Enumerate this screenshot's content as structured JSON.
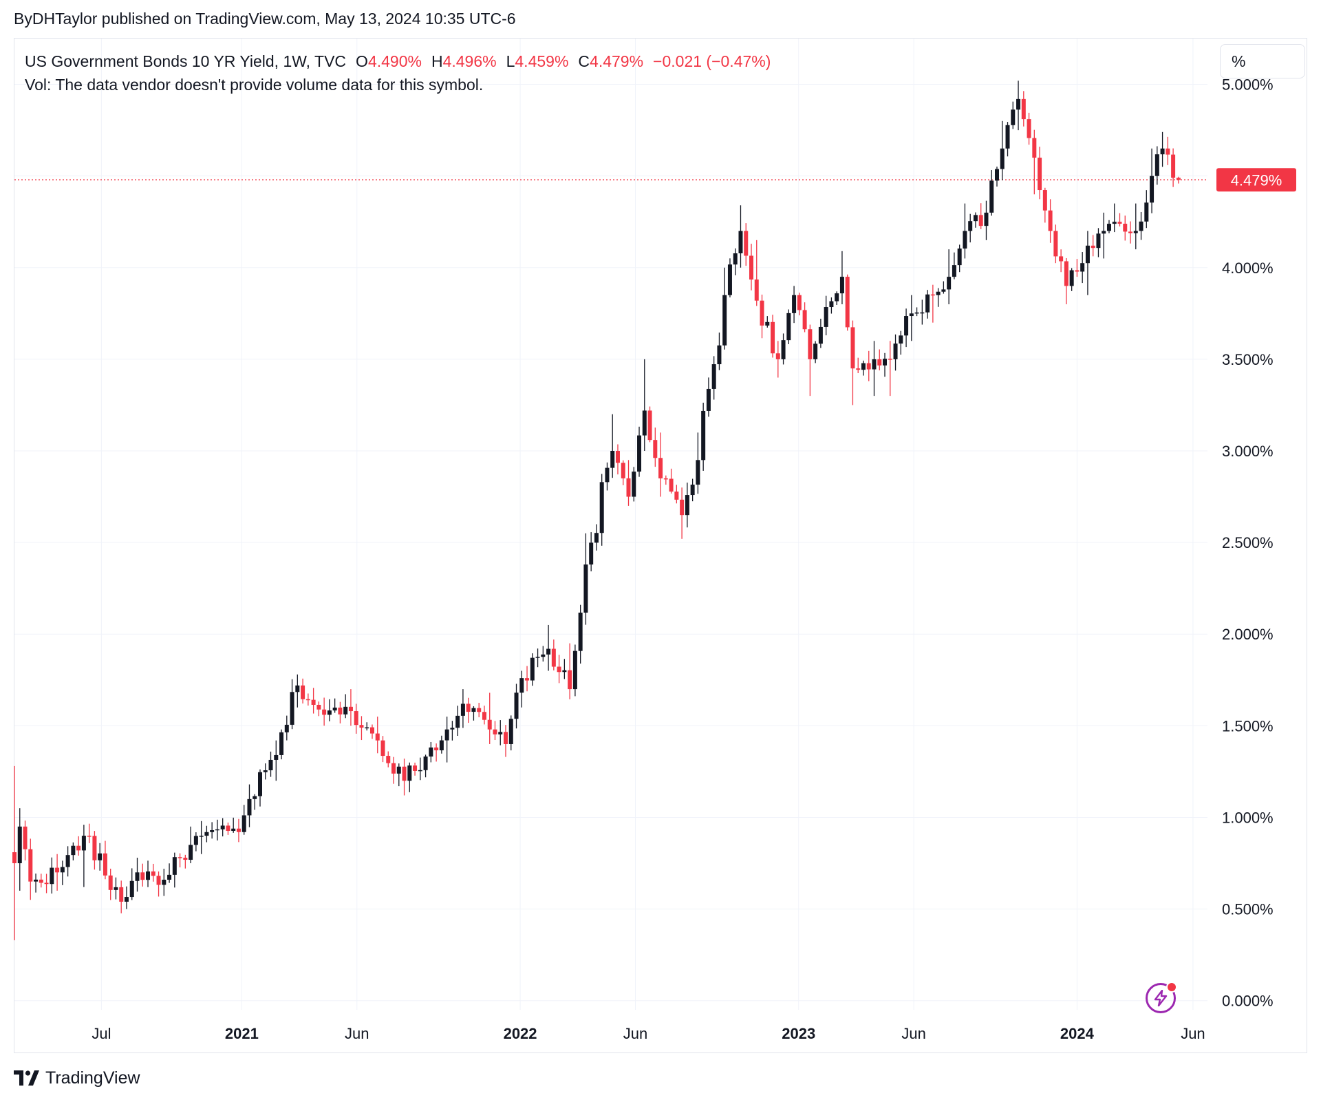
{
  "header": {
    "publish_line": "ByDHTaylor published on TradingView.com, May 13, 2024 10:35 UTC-6"
  },
  "legend": {
    "symbol": "US Government Bonds 10 YR Yield, 1W, TVC",
    "open_label": "O",
    "open_value": "4.490%",
    "high_label": "H",
    "high_value": "4.496%",
    "low_label": "L",
    "low_value": "4.459%",
    "close_label": "C",
    "close_value": "4.479%",
    "change": "−0.021 (−0.47%)",
    "vol_note": "Vol: The data vendor doesn't provide volume data for this symbol."
  },
  "toolbar": {
    "unit_label": "%"
  },
  "price_label": "4.479%",
  "brand": {
    "name": "TradingView"
  },
  "colors": {
    "up": "#131722",
    "down": "#f23645",
    "grid": "#f0f3fa",
    "text": "#131722"
  },
  "chart_data": {
    "type": "candlestick",
    "interval": "1W",
    "y_axis": {
      "ticks": [
        0,
        0.5,
        1,
        1.5,
        2,
        2.5,
        3,
        3.5,
        4,
        4.5,
        5
      ],
      "tick_labels": [
        "0.000%",
        "0.500%",
        "1.000%",
        "1.500%",
        "2.000%",
        "2.500%",
        "3.000%",
        "3.500%",
        "4.000%",
        "4.500%",
        "5.000%"
      ],
      "range": [
        -0.05,
        5.25
      ]
    },
    "x_axis": {
      "labels": [
        {
          "text": "Jul",
          "date": "2020-07-01",
          "bold": false
        },
        {
          "text": "2021",
          "date": "2021-01-01",
          "bold": true
        },
        {
          "text": "Jun",
          "date": "2021-06-01",
          "bold": false
        },
        {
          "text": "2022",
          "date": "2022-01-01",
          "bold": true
        },
        {
          "text": "Jun",
          "date": "2022-06-01",
          "bold": false
        },
        {
          "text": "2023",
          "date": "2023-01-01",
          "bold": true
        },
        {
          "text": "Jun",
          "date": "2023-06-01",
          "bold": false
        },
        {
          "text": "2024",
          "date": "2024-01-01",
          "bold": true
        },
        {
          "text": "Jun",
          "date": "2024-06-01",
          "bold": false
        }
      ],
      "range": [
        "2020-03-09",
        "2024-06-20"
      ]
    },
    "grid": true,
    "last_close": 4.479,
    "anchors": [
      [
        "2020-03-09",
        0.75,
        1.28,
        0.33
      ],
      [
        "2020-03-16",
        0.95,
        1.05,
        0.6
      ],
      [
        "2020-03-30",
        0.65,
        0.8,
        0.55
      ],
      [
        "2020-05-04",
        0.7,
        0.8,
        0.6
      ],
      [
        "2020-06-08",
        0.9,
        0.96,
        0.62
      ],
      [
        "2020-07-27",
        0.54,
        0.6,
        0.5
      ],
      [
        "2020-08-17",
        0.7,
        0.78,
        0.62
      ],
      [
        "2020-09-21",
        0.66,
        0.72,
        0.62
      ],
      [
        "2020-10-26",
        0.85,
        0.95,
        0.75
      ],
      [
        "2020-11-09",
        0.9,
        0.98,
        0.8
      ],
      [
        "2020-12-28",
        0.92,
        0.98,
        0.88
      ],
      [
        "2021-01-11",
        1.1,
        1.18,
        1.0
      ],
      [
        "2021-02-15",
        1.34,
        1.42,
        1.2
      ],
      [
        "2021-03-15",
        1.72,
        1.78,
        1.6
      ],
      [
        "2021-04-19",
        1.56,
        1.65,
        1.52
      ],
      [
        "2021-05-24",
        1.58,
        1.7,
        1.5
      ],
      [
        "2021-06-28",
        1.42,
        1.55,
        1.35
      ],
      [
        "2021-08-02",
        1.2,
        1.3,
        1.12
      ],
      [
        "2021-09-27",
        1.48,
        1.55,
        1.3
      ],
      [
        "2021-10-18",
        1.62,
        1.7,
        1.5
      ],
      [
        "2021-11-22",
        1.48,
        1.68,
        1.4
      ],
      [
        "2021-12-13",
        1.4,
        1.5,
        1.33
      ],
      [
        "2022-01-03",
        1.76,
        1.8,
        1.6
      ],
      [
        "2022-02-07",
        1.92,
        2.05,
        1.8
      ],
      [
        "2022-03-07",
        1.7,
        1.95,
        1.67
      ],
      [
        "2022-03-28",
        2.38,
        2.55,
        2.15
      ],
      [
        "2022-05-02",
        3.0,
        3.2,
        2.9
      ],
      [
        "2022-05-23",
        2.75,
        2.95,
        2.7
      ],
      [
        "2022-06-13",
        3.22,
        3.5,
        3.0
      ],
      [
        "2022-07-04",
        2.85,
        3.1,
        2.75
      ],
      [
        "2022-08-01",
        2.65,
        2.8,
        2.52
      ],
      [
        "2022-08-22",
        2.95,
        3.1,
        2.8
      ],
      [
        "2022-09-26",
        3.85,
        4.0,
        3.6
      ],
      [
        "2022-10-17",
        4.2,
        4.34,
        4.0
      ],
      [
        "2022-11-07",
        3.82,
        4.15,
        3.8
      ],
      [
        "2022-12-05",
        3.5,
        3.6,
        3.4
      ],
      [
        "2022-12-26",
        3.85,
        3.9,
        3.7
      ],
      [
        "2023-01-16",
        3.5,
        3.6,
        3.3
      ],
      [
        "2023-02-27",
        3.95,
        4.09,
        3.8
      ],
      [
        "2023-03-13",
        3.45,
        3.7,
        3.25
      ],
      [
        "2023-04-10",
        3.5,
        3.6,
        3.3
      ],
      [
        "2023-05-01",
        3.5,
        3.6,
        3.3
      ],
      [
        "2023-05-29",
        3.75,
        3.85,
        3.6
      ],
      [
        "2023-06-26",
        3.85,
        3.9,
        3.7
      ],
      [
        "2023-07-17",
        3.95,
        4.1,
        3.8
      ],
      [
        "2023-08-07",
        4.2,
        4.35,
        4.05
      ],
      [
        "2023-09-04",
        4.3,
        4.36,
        4.15
      ],
      [
        "2023-09-25",
        4.65,
        4.8,
        4.5
      ],
      [
        "2023-10-16",
        4.92,
        5.02,
        4.75
      ],
      [
        "2023-11-06",
        4.6,
        4.7,
        4.4
      ],
      [
        "2023-11-27",
        4.2,
        4.3,
        4.15
      ],
      [
        "2023-12-18",
        3.9,
        4.0,
        3.8
      ],
      [
        "2024-01-15",
        4.12,
        4.2,
        3.85
      ],
      [
        "2024-02-05",
        4.2,
        4.3,
        4.05
      ],
      [
        "2024-02-19",
        4.25,
        4.35,
        4.2
      ],
      [
        "2024-03-18",
        4.2,
        4.35,
        4.1
      ],
      [
        "2024-04-08",
        4.5,
        4.65,
        4.4
      ],
      [
        "2024-04-22",
        4.65,
        4.74,
        4.55
      ],
      [
        "2024-05-06",
        4.49,
        4.55,
        4.44
      ],
      [
        "2024-05-13",
        4.479,
        4.496,
        4.459
      ]
    ]
  }
}
